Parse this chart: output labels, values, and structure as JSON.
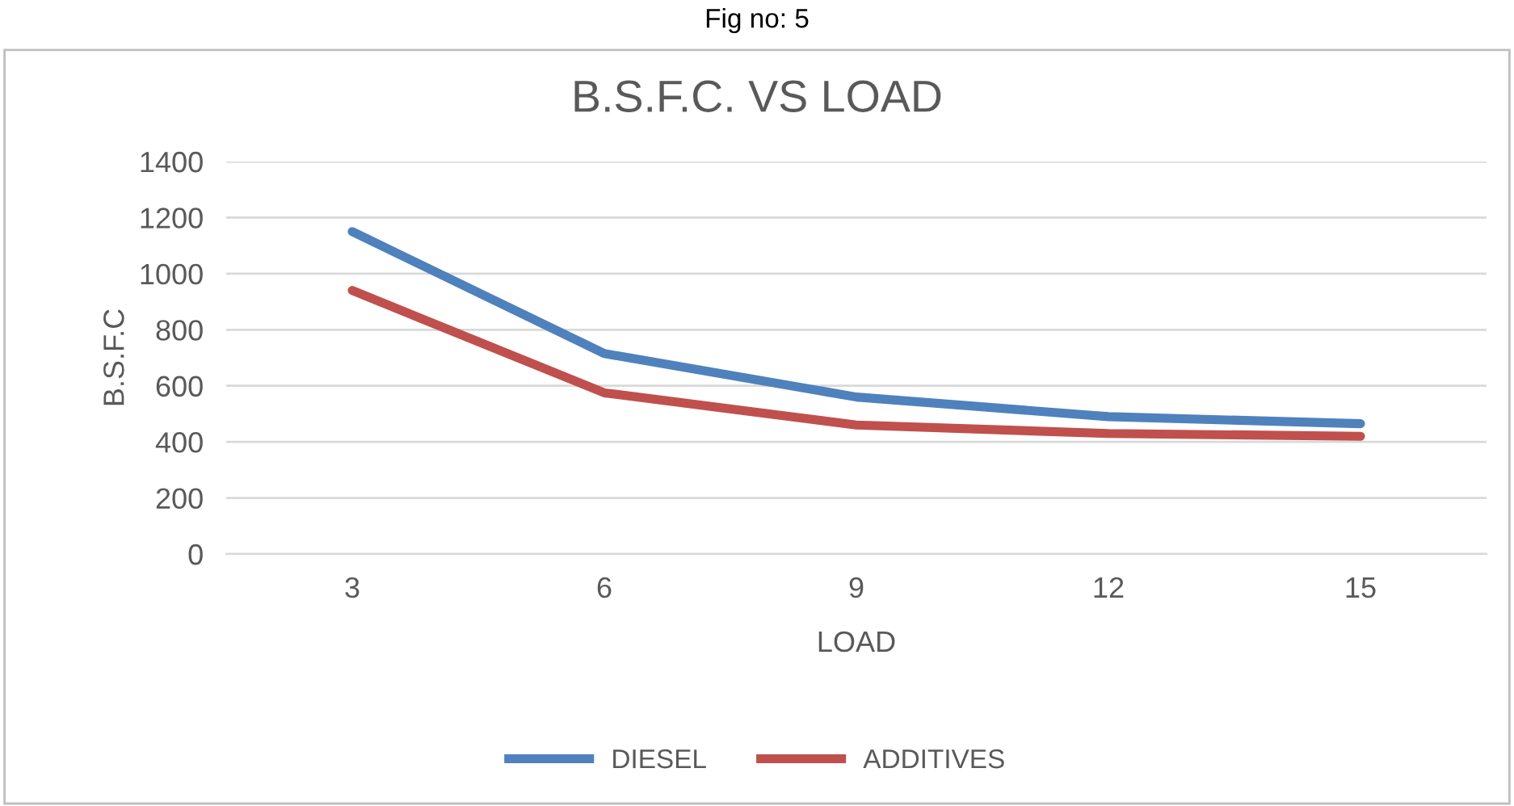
{
  "chart_data": {
    "type": "line",
    "title": "B.S.F.C. VS LOAD",
    "xlabel": "LOAD",
    "ylabel": "B.S.F.C",
    "annotations": [
      "Fig no: 5"
    ],
    "categories": [
      "3",
      "6",
      "9",
      "12",
      "15"
    ],
    "series": [
      {
        "name": "DIESEL",
        "color": "#4f81bd",
        "values": [
          1150,
          715,
          560,
          490,
          465
        ]
      },
      {
        "name": "ADDITIVES",
        "color": "#c0504d",
        "values": [
          940,
          575,
          460,
          430,
          420
        ]
      }
    ],
    "ylim": [
      0,
      1400
    ],
    "yticks": [
      0,
      200,
      400,
      600,
      800,
      1000,
      1200,
      1400
    ],
    "grid": "y",
    "legend": "bottom",
    "marker": "none",
    "line_style": "solid"
  }
}
